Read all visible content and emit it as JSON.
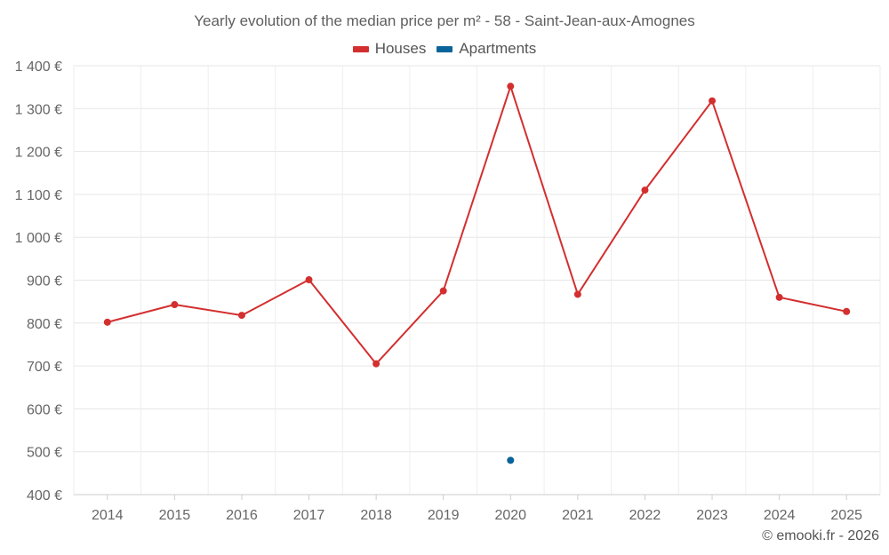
{
  "chart_data": {
    "type": "line",
    "title": "Yearly evolution of the median price per m² - 58 - Saint-Jean-aux-Amognes",
    "categories": [
      "2014",
      "2015",
      "2016",
      "2017",
      "2018",
      "2019",
      "2020",
      "2021",
      "2022",
      "2023",
      "2024",
      "2025"
    ],
    "series": [
      {
        "name": "Houses",
        "color": "#d32f2f",
        "values": [
          802,
          843,
          818,
          901,
          705,
          875,
          1352,
          867,
          1110,
          1318,
          860,
          827
        ]
      },
      {
        "name": "Apartments",
        "color": "#0a6499",
        "values": [
          null,
          null,
          null,
          null,
          null,
          null,
          480,
          null,
          null,
          null,
          null,
          null
        ]
      }
    ],
    "ylim": [
      400,
      1400
    ],
    "yticks": [
      400,
      500,
      600,
      700,
      800,
      900,
      1000,
      1100,
      1200,
      1300,
      1400
    ],
    "ytick_labels": [
      "400 €",
      "500 €",
      "600 €",
      "700 €",
      "800 €",
      "900 €",
      "1 000 €",
      "1 100 €",
      "1 200 €",
      "1 300 €",
      "1 400 €"
    ],
    "xlabel": "",
    "ylabel": "",
    "grid": true,
    "legend": "top-center"
  },
  "credit": "© emooki.fr - 2026"
}
